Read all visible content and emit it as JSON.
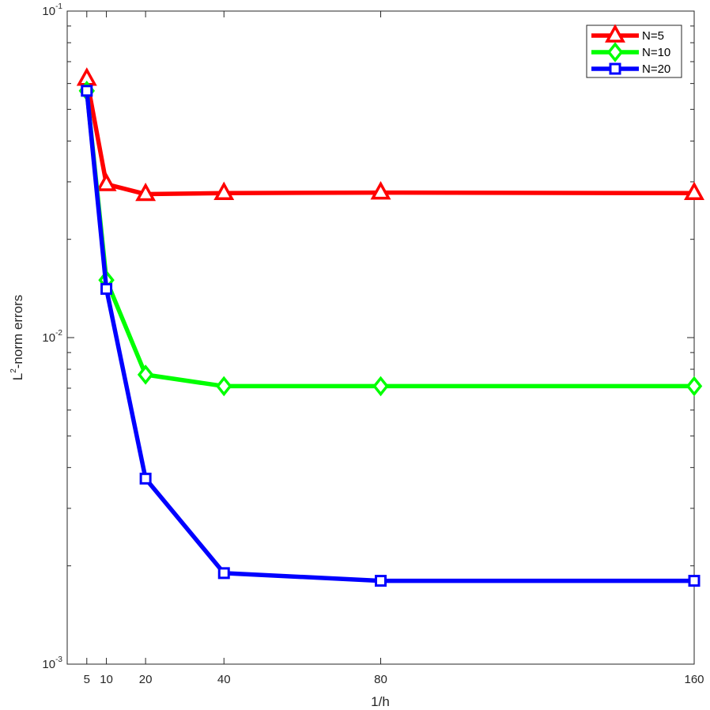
{
  "chart_data": {
    "type": "line",
    "xlabel": "1/h",
    "ylabel": {
      "base": "L",
      "sup": "2",
      "rest": "-norm  errors"
    },
    "x": [
      5,
      10,
      20,
      40,
      80,
      160
    ],
    "x_ticks": [
      {
        "value": 5,
        "label": "5"
      },
      {
        "value": 10,
        "label": "10"
      },
      {
        "value": 20,
        "label": "20"
      },
      {
        "value": 40,
        "label": "40"
      },
      {
        "value": 80,
        "label": "80"
      },
      {
        "value": 160,
        "label": "160"
      }
    ],
    "xlim": [
      0,
      160
    ],
    "y_scale": "log",
    "ylim": [
      0.001,
      0.1
    ],
    "y_ticks": [
      {
        "value": 0.1,
        "base": "10",
        "exp": "-1"
      },
      {
        "value": 0.01,
        "base": "10",
        "exp": "-2"
      },
      {
        "value": 0.001,
        "base": "10",
        "exp": "-3"
      }
    ],
    "grid": false,
    "legend_position": "top-right",
    "series": [
      {
        "name": "N=5",
        "color": "#ff0000",
        "marker": "triangle",
        "values": [
          0.062,
          0.0295,
          0.0275,
          0.0277,
          0.0278,
          0.0277
        ]
      },
      {
        "name": "N=10",
        "color": "#00ff00",
        "marker": "diamond",
        "values": [
          0.057,
          0.015,
          0.0077,
          0.0071,
          0.0071,
          0.0071
        ]
      },
      {
        "name": "N=20",
        "color": "#0000ff",
        "marker": "square",
        "values": [
          0.057,
          0.0141,
          0.0037,
          0.0019,
          0.0018,
          0.0018
        ]
      }
    ]
  }
}
